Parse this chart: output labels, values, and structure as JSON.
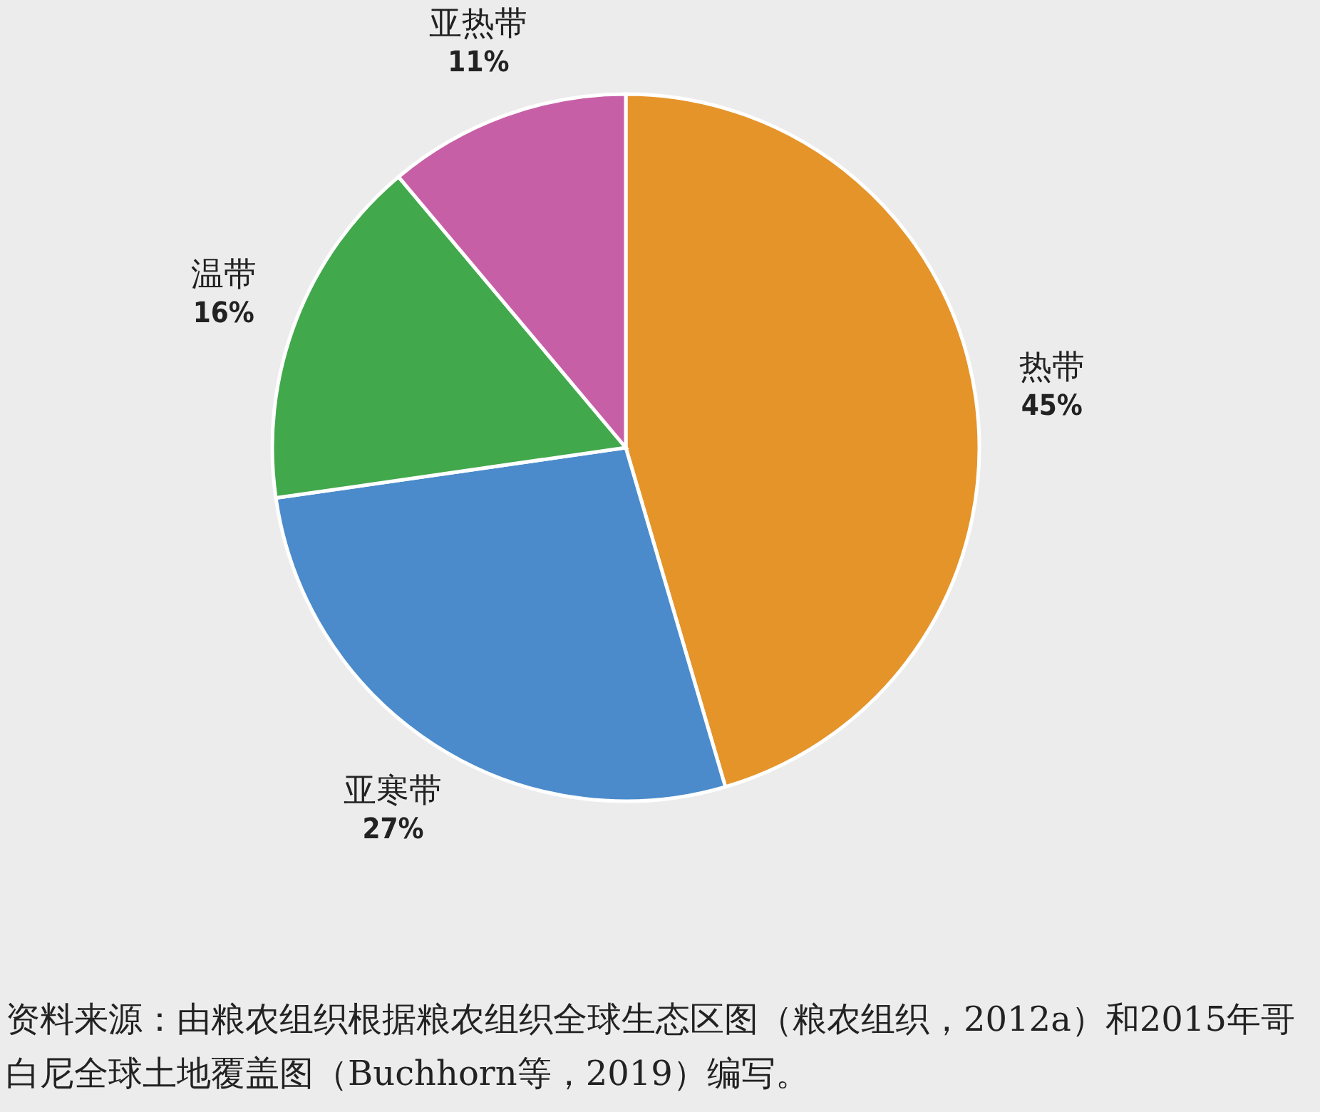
{
  "chart_data": {
    "type": "pie",
    "categories": [
      "热带",
      "亚寒带",
      "温带",
      "亚热带"
    ],
    "values": [
      45,
      27,
      16,
      11
    ],
    "value_labels": [
      "45%",
      "27%",
      "16%",
      "11%"
    ],
    "colors": [
      "#e5942a",
      "#4b8bcb",
      "#41a84b",
      "#c75fa6"
    ],
    "annotations": [
      "资料来源：由粮农组织根据粮农组织全球生态区图（粮农组织，2012a）和2015年哥白尼全球土地覆盖图（Buchhorn等，2019）编写。"
    ]
  }
}
